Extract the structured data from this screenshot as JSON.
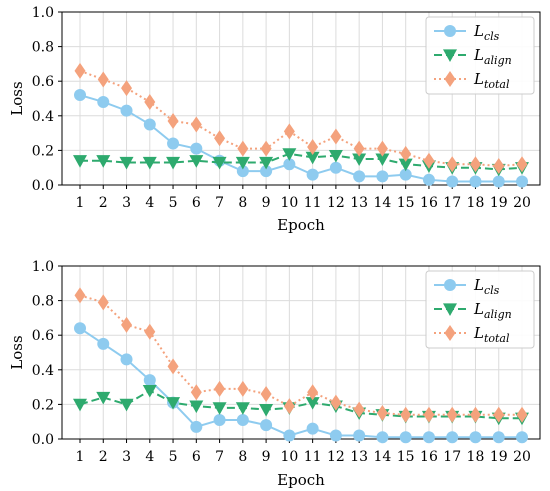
{
  "chart_data": [
    {
      "type": "line",
      "xlabel": "Epoch",
      "ylabel": "Loss",
      "x": [
        1,
        2,
        3,
        4,
        5,
        6,
        7,
        8,
        9,
        10,
        11,
        12,
        13,
        14,
        15,
        16,
        17,
        18,
        19,
        20
      ],
      "ylim": [
        0,
        1.0
      ],
      "yticks": [
        0.0,
        0.2,
        0.4,
        0.6,
        0.8,
        1.0
      ],
      "ytick_labels": [
        "0.0",
        "0.2",
        "0.4",
        "0.6",
        "0.8",
        "1.0"
      ],
      "grid": true,
      "legend_position": "top-right",
      "series": [
        {
          "name": "L",
          "sub": "cls",
          "color": "#8ecbef",
          "marker": "circle",
          "dash": "solid",
          "values": [
            0.52,
            0.48,
            0.43,
            0.35,
            0.24,
            0.21,
            0.14,
            0.08,
            0.08,
            0.12,
            0.06,
            0.1,
            0.05,
            0.05,
            0.06,
            0.03,
            0.02,
            0.02,
            0.02,
            0.02
          ]
        },
        {
          "name": "L",
          "sub": "align",
          "color": "#2eaa6e",
          "marker": "triangle-down",
          "dash": "dashed",
          "values": [
            0.14,
            0.14,
            0.13,
            0.13,
            0.13,
            0.14,
            0.13,
            0.13,
            0.13,
            0.18,
            0.16,
            0.17,
            0.15,
            0.15,
            0.12,
            0.11,
            0.1,
            0.1,
            0.09,
            0.1
          ]
        },
        {
          "name": "L",
          "sub": "total",
          "color": "#f4a27d",
          "marker": "diamond",
          "dash": "dotted",
          "values": [
            0.66,
            0.61,
            0.56,
            0.48,
            0.37,
            0.35,
            0.27,
            0.21,
            0.21,
            0.31,
            0.22,
            0.28,
            0.21,
            0.21,
            0.18,
            0.14,
            0.12,
            0.12,
            0.11,
            0.12
          ]
        }
      ]
    },
    {
      "type": "line",
      "xlabel": "Epoch",
      "ylabel": "Loss",
      "x": [
        1,
        2,
        3,
        4,
        5,
        6,
        7,
        8,
        9,
        10,
        11,
        12,
        13,
        14,
        15,
        16,
        17,
        18,
        19,
        20
      ],
      "ylim": [
        0,
        1.0
      ],
      "yticks": [
        0.0,
        0.2,
        0.4,
        0.6,
        0.8,
        1.0
      ],
      "ytick_labels": [
        "0.0",
        "0.2",
        "0.4",
        "0.6",
        "0.8",
        "1.0"
      ],
      "grid": true,
      "legend_position": "top-right",
      "series": [
        {
          "name": "L",
          "sub": "cls",
          "color": "#8ecbef",
          "marker": "circle",
          "dash": "solid",
          "values": [
            0.64,
            0.55,
            0.46,
            0.34,
            0.21,
            0.07,
            0.11,
            0.11,
            0.08,
            0.02,
            0.06,
            0.02,
            0.02,
            0.01,
            0.01,
            0.01,
            0.01,
            0.01,
            0.01,
            0.01
          ]
        },
        {
          "name": "L",
          "sub": "align",
          "color": "#2eaa6e",
          "marker": "triangle-down",
          "dash": "dashed",
          "values": [
            0.2,
            0.24,
            0.2,
            0.28,
            0.21,
            0.19,
            0.18,
            0.18,
            0.17,
            0.18,
            0.21,
            0.19,
            0.15,
            0.14,
            0.13,
            0.13,
            0.13,
            0.13,
            0.12,
            0.12
          ]
        },
        {
          "name": "L",
          "sub": "total",
          "color": "#f4a27d",
          "marker": "diamond",
          "dash": "dotted",
          "values": [
            0.83,
            0.79,
            0.66,
            0.62,
            0.42,
            0.27,
            0.29,
            0.29,
            0.26,
            0.19,
            0.27,
            0.21,
            0.17,
            0.15,
            0.14,
            0.14,
            0.14,
            0.14,
            0.14,
            0.14
          ]
        }
      ]
    }
  ]
}
